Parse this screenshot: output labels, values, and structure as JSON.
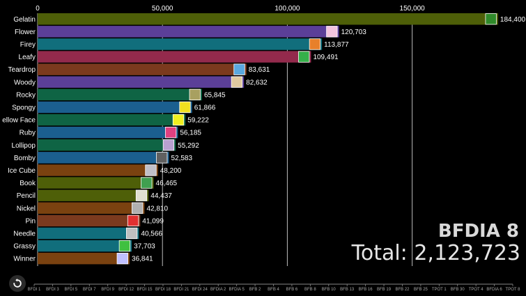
{
  "chart_data": {
    "type": "bar",
    "orientation": "horizontal",
    "categories": [
      "Gelatin",
      "Flower",
      "Firey",
      "Leafy",
      "Teardrop",
      "Woody",
      "Rocky",
      "Spongy",
      "ellow Face",
      "Ruby",
      "Lollipop",
      "Bomby",
      "Ice Cube",
      "Book",
      "Pencil",
      "Nickel",
      "Pin",
      "Needle",
      "Grassy",
      "Winner"
    ],
    "values": [
      184400,
      120703,
      113877,
      109491,
      83631,
      82632,
      65845,
      61866,
      59222,
      56185,
      55292,
      52583,
      48200,
      46465,
      44437,
      42810,
      41099,
      40566,
      37703,
      36841
    ],
    "value_labels": [
      "184,400",
      "120,703",
      "113,877",
      "109,491",
      "83,631",
      "82,632",
      "65,845",
      "61,866",
      "59,222",
      "56,185",
      "55,292",
      "52,583",
      "48,200",
      "46,465",
      "44,437",
      "42,810",
      "41,099",
      "40,566",
      "37,703",
      "36,841"
    ],
    "colors": [
      "#4e5f08",
      "#5b3f98",
      "#116e7c",
      "#932a4c",
      "#7b3a1e",
      "#5b3f98",
      "#0f6444",
      "#1b5f8f",
      "#0f6444",
      "#1b5f8f",
      "#0f6444",
      "#1b5f8f",
      "#7a4210",
      "#4e5f08",
      "#4e5f08",
      "#7a4210",
      "#7b3a1e",
      "#116e7c",
      "#116e7c",
      "#7a4210"
    ],
    "icon_colors": [
      "#2f8a2a",
      "#f2c4de",
      "#e8802a",
      "#35b04a",
      "#5aa8e0",
      "#e0c9a0",
      "#a8a060",
      "#f0e020",
      "#f0f020",
      "#e04080",
      "#b8a0d0",
      "#606060",
      "#c0c0c8",
      "#40a050",
      "#e0e0d0",
      "#b0b0b0",
      "#e03030",
      "#c0c0c0",
      "#40c040",
      "#c0c0ff"
    ],
    "xlim": [
      0,
      190000
    ],
    "xticks": [
      0,
      50000,
      100000,
      150000
    ],
    "xtick_labels": [
      "0",
      "50,000",
      "100,000",
      "150,000"
    ],
    "grid": true,
    "timeline_labels": [
      "BFDI 1",
      "BFDI 3",
      "BFDI 5",
      "BFDI 7",
      "BFDI 9",
      "BFDI 12",
      "BFDI 15",
      "BFDI 18",
      "BFDI 21",
      "BFDI 24",
      "BFDIA 2",
      "BFDIA 5",
      "BFB 2",
      "BFB 4",
      "BFB 6",
      "BFB 8",
      "BFB 10",
      "BFB 13",
      "BFB 16",
      "BFB 19",
      "BFB 22",
      "BFB 25",
      "TPOT 1",
      "BFB 30",
      "TPOT 4",
      "BFDIA 6",
      "TPOT 8"
    ]
  },
  "stage_label": "BFDIA 8",
  "total_label": "Total: 2,123,723",
  "replay_icon": "replay-icon"
}
